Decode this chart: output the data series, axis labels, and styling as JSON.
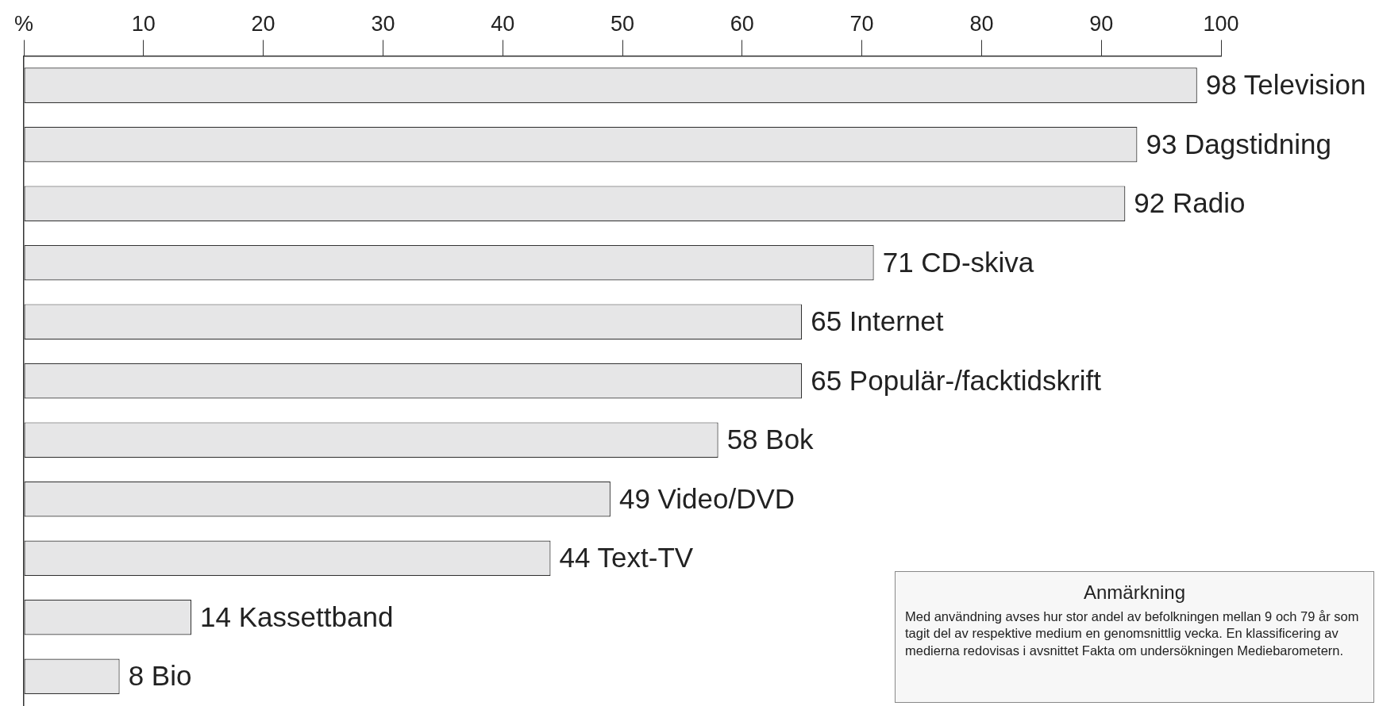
{
  "chart_data": {
    "type": "bar",
    "orientation": "horizontal",
    "categories": [
      null,
      null,
      null,
      null,
      null,
      null,
      null,
      null,
      null,
      null,
      null
    ],
    "values": [
      98,
      93,
      92,
      71,
      65,
      65,
      58,
      49,
      44,
      14,
      8
    ],
    "value_labels": [
      "98 Television",
      "93 Dagstidning",
      "92 Radio",
      "71 CD-skiva",
      "65 Internet",
      "65 Populär-/facktidskrift",
      "58 Bok",
      "49 Video/DVD",
      "44 Text-TV",
      "14 Kassettband",
      "8 Bio"
    ],
    "color": "#e6e6e7",
    "xlim": [
      0,
      100
    ],
    "xticks": [
      {
        "value": 0,
        "label": "%"
      },
      10,
      20,
      30,
      40,
      50,
      60,
      70,
      80,
      90,
      100
    ],
    "grid": false,
    "legend": false,
    "tick_labels": "x",
    "annotations": [
      "Anmärkning",
      "Med användning avses hur stor andel av befolkningen mellan 9 och 79 år som tagit del av respektive medium en genomsnittlig vecka. En klassificering av medierna redovisas i avsnittet Fakta om undersökningen Mediebarometern."
    ]
  }
}
